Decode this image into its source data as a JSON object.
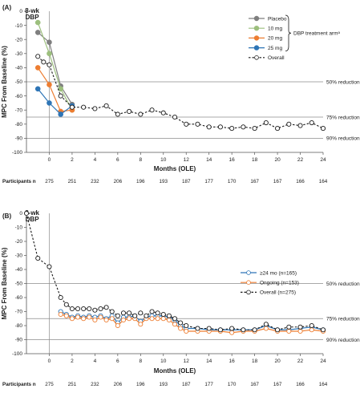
{
  "chart_data": [
    {
      "panel_label": "(A)",
      "type": "line",
      "xlabel": "Months (OLE)",
      "ylabel": "MPC From Baseline (%)",
      "ylim": [
        -100,
        0
      ],
      "xlim": [
        -2,
        24
      ],
      "y_ticks": [
        "0",
        "-10",
        "-20",
        "-30",
        "-40",
        "-50",
        "-60",
        "-70",
        "-80",
        "-90",
        "-100"
      ],
      "x_ticks": [
        "0",
        "2",
        "4",
        "6",
        "8",
        "10",
        "12",
        "14",
        "16",
        "18",
        "20",
        "22",
        "24"
      ],
      "period_label_line1": "8-wk",
      "period_label_line2": "DBP",
      "reference_lines": [
        {
          "y": -50,
          "label": "50% reduction"
        },
        {
          "y": -75,
          "label": "75% reduction"
        },
        {
          "y": -90,
          "label": "90% reduction"
        }
      ],
      "bracket_label": "DBP treatment armᵃ",
      "series": [
        {
          "name": "Placebo",
          "color": "#7f7f7f",
          "style": "solid",
          "x": [
            -1,
            0,
            1,
            2
          ],
          "y": [
            -15,
            -22,
            -53,
            -66
          ]
        },
        {
          "name": "10 mg",
          "color": "#9cbf7d",
          "style": "solid",
          "x": [
            -1,
            0,
            1,
            2
          ],
          "y": [
            -8,
            -30,
            -55,
            -70
          ]
        },
        {
          "name": "20 mg",
          "color": "#ed7d31",
          "style": "solid",
          "x": [
            -1,
            0,
            1,
            2
          ],
          "y": [
            -40,
            -52,
            -71,
            -70
          ]
        },
        {
          "name": "25 mg",
          "color": "#2e75b6",
          "style": "solid",
          "x": [
            -1,
            0,
            1,
            2
          ],
          "y": [
            -55,
            -65,
            -73,
            -67
          ]
        },
        {
          "name": "Overall",
          "color": "#1a1a1a",
          "style": "dashed-open",
          "x": [
            -1,
            -0.5,
            0,
            1,
            2,
            3,
            4,
            5,
            6,
            7,
            8,
            9,
            10,
            11,
            12,
            13,
            14,
            15,
            16,
            17,
            18,
            19,
            20,
            21,
            22,
            23,
            24
          ],
          "y": [
            -32,
            -36,
            -38,
            -60,
            -68,
            -68,
            -69,
            -67,
            -73,
            -71,
            -73,
            -70,
            -72,
            -75,
            -80,
            -80,
            -82,
            -82,
            -83,
            -82,
            -83,
            -79,
            -83,
            -80,
            -81,
            -79,
            -83
          ]
        }
      ],
      "participants_label": "Participants n",
      "participants": {
        "x": [
          0,
          2,
          4,
          6,
          8,
          10,
          12,
          14,
          16,
          18,
          20,
          22,
          24
        ],
        "n": [
          "275",
          "251",
          "232",
          "206",
          "196",
          "193",
          "187",
          "177",
          "170",
          "167",
          "167",
          "166",
          "164"
        ]
      }
    },
    {
      "panel_label": "(B)",
      "type": "line",
      "xlabel": "Months (OLE)",
      "ylabel": "MPC From Baseline (%)",
      "ylim": [
        -100,
        0
      ],
      "xlim": [
        -2,
        24
      ],
      "y_ticks": [
        "0",
        "-10",
        "-20",
        "-30",
        "-40",
        "-50",
        "-60",
        "-70",
        "-80",
        "-90",
        "-100"
      ],
      "x_ticks": [
        "0",
        "2",
        "4",
        "6",
        "8",
        "10",
        "12",
        "14",
        "16",
        "18",
        "20",
        "22",
        "24"
      ],
      "period_label_line1": "8-wk",
      "period_label_line2": "DBP",
      "reference_lines": [
        {
          "y": -50,
          "label": "50% reduction"
        },
        {
          "y": -75,
          "label": "75% reduction"
        },
        {
          "y": -90,
          "label": "90% reduction"
        }
      ],
      "series": [
        {
          "name": "≥24 mo (n=165)",
          "color": "#2e75b6",
          "style": "solid-open",
          "x": [
            1,
            1.5,
            2,
            2.5,
            3,
            3.5,
            4,
            4.5,
            5,
            5.5,
            6,
            6.5,
            7,
            7.5,
            8,
            8.5,
            9,
            9.5,
            10,
            10.5,
            11,
            11.5,
            12,
            13,
            14,
            15,
            16,
            17,
            18,
            19,
            20,
            21,
            22,
            23,
            24
          ],
          "y": [
            -70,
            -72,
            -74,
            -73,
            -74,
            -73,
            -74,
            -73,
            -75,
            -73,
            -78,
            -74,
            -74,
            -73,
            -77,
            -74,
            -73,
            -73,
            -73,
            -74,
            -76,
            -80,
            -82,
            -82,
            -83,
            -83,
            -83,
            -83,
            -83,
            -80,
            -83,
            -83,
            -82,
            -81,
            -83
          ]
        },
        {
          "name": "Ongoing (n=153)",
          "color": "#ed7d31",
          "style": "solid-open",
          "x": [
            1,
            1.5,
            2,
            2.5,
            3,
            3.5,
            4,
            4.5,
            5,
            5.5,
            6,
            6.5,
            7,
            7.5,
            8,
            8.5,
            9,
            9.5,
            10,
            10.5,
            11,
            11.5,
            12,
            13,
            14,
            15,
            16,
            17,
            18,
            19,
            20,
            21,
            22,
            23,
            24
          ],
          "y": [
            -72,
            -73,
            -75,
            -74,
            -75,
            -74,
            -76,
            -74,
            -76,
            -75,
            -80,
            -76,
            -75,
            -75,
            -79,
            -75,
            -75,
            -75,
            -75,
            -76,
            -79,
            -82,
            -84,
            -84,
            -84,
            -84,
            -85,
            -84,
            -84,
            -82,
            -84,
            -84,
            -84,
            -83,
            -84
          ]
        },
        {
          "name": "Overall (n=275)",
          "color": "#1a1a1a",
          "style": "dashed-open",
          "x": [
            -2,
            -1,
            0,
            1,
            1.5,
            2,
            2.5,
            3,
            3.5,
            4,
            4.5,
            5,
            5.5,
            6,
            6.5,
            7,
            7.5,
            8,
            8.5,
            9,
            9.5,
            10,
            10.5,
            11,
            11.5,
            12,
            13,
            14,
            15,
            16,
            17,
            18,
            19,
            20,
            21,
            22,
            23,
            24
          ],
          "y": [
            0,
            -32,
            -38,
            -60,
            -65,
            -68,
            -68,
            -68,
            -68,
            -69,
            -68,
            -67,
            -70,
            -73,
            -71,
            -71,
            -73,
            -71,
            -73,
            -70,
            -71,
            -72,
            -73,
            -75,
            -78,
            -80,
            -82,
            -82,
            -83,
            -82,
            -83,
            -83,
            -79,
            -83,
            -81,
            -81,
            -80,
            -83
          ]
        }
      ],
      "participants_label": "Participants n",
      "participants": {
        "x": [
          0,
          2,
          4,
          6,
          8,
          10,
          12,
          14,
          16,
          18,
          20,
          22,
          24
        ],
        "n": [
          "275",
          "251",
          "232",
          "206",
          "196",
          "193",
          "187",
          "177",
          "170",
          "167",
          "167",
          "166",
          "164"
        ]
      }
    }
  ]
}
